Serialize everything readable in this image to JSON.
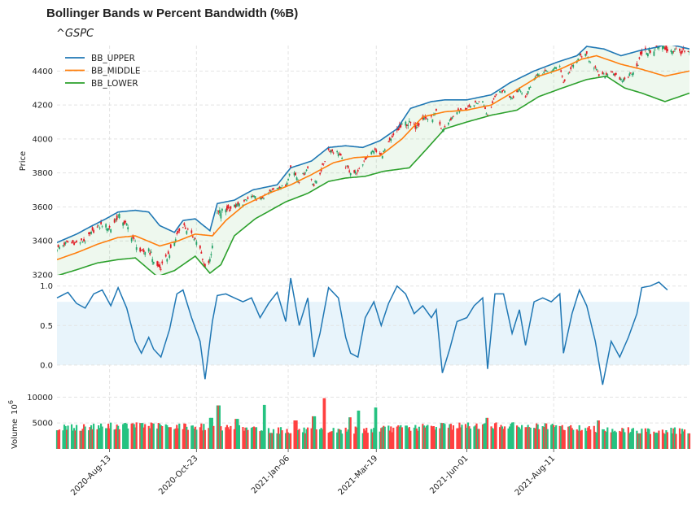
{
  "title": "Bollinger Bands w Percent Bandwidth (%B)",
  "subtitle": "^GSPC",
  "chart_data": [
    {
      "type": "candlestick",
      "panel": "price",
      "ylabel": "Price",
      "ylim": [
        3200,
        4550
      ],
      "yticks": [
        3200,
        3400,
        3600,
        3800,
        4000,
        4200,
        4400
      ],
      "grid": true,
      "legend_position": "top-left",
      "x_start": "2020-07-01",
      "x_end": "2021-11-30",
      "series": [
        {
          "name": "BB_UPPER",
          "color": "#1f77b4",
          "points": [
            [
              "2020-07-01",
              3390
            ],
            [
              "2020-07-17",
              3440
            ],
            [
              "2020-07-30",
              3490
            ],
            [
              "2020-08-10",
              3530
            ],
            [
              "2020-08-20",
              3570
            ],
            [
              "2020-09-03",
              3580
            ],
            [
              "2020-09-14",
              3570
            ],
            [
              "2020-09-23",
              3490
            ],
            [
              "2020-10-05",
              3450
            ],
            [
              "2020-10-12",
              3520
            ],
            [
              "2020-10-22",
              3530
            ],
            [
              "2020-11-03",
              3460
            ],
            [
              "2020-11-09",
              3620
            ],
            [
              "2020-11-23",
              3640
            ],
            [
              "2020-12-08",
              3700
            ],
            [
              "2020-12-28",
              3730
            ],
            [
              "2021-01-08",
              3830
            ],
            [
              "2021-01-25",
              3870
            ],
            [
              "2021-02-08",
              3950
            ],
            [
              "2021-02-22",
              3960
            ],
            [
              "2021-03-08",
              3950
            ],
            [
              "2021-03-22",
              3990
            ],
            [
              "2021-04-05",
              4060
            ],
            [
              "2021-04-16",
              4180
            ],
            [
              "2021-05-03",
              4220
            ],
            [
              "2021-05-14",
              4230
            ],
            [
              "2021-06-01",
              4230
            ],
            [
              "2021-06-21",
              4260
            ],
            [
              "2021-07-06",
              4330
            ],
            [
              "2021-07-26",
              4400
            ],
            [
              "2021-08-13",
              4450
            ],
            [
              "2021-08-30",
              4490
            ],
            [
              "2021-09-07",
              4545
            ],
            [
              "2021-09-21",
              4530
            ],
            [
              "2021-10-05",
              4490
            ],
            [
              "2021-10-20",
              4520
            ],
            [
              "2021-11-03",
              4540
            ],
            [
              "2021-11-12",
              4560
            ],
            [
              "2021-11-30",
              4530
            ]
          ]
        },
        {
          "name": "BB_MIDDLE",
          "color": "#ff7f0e",
          "points": [
            [
              "2020-07-01",
              3290
            ],
            [
              "2020-07-17",
              3330
            ],
            [
              "2020-08-03",
              3380
            ],
            [
              "2020-08-20",
              3420
            ],
            [
              "2020-09-03",
              3430
            ],
            [
              "2020-09-23",
              3370
            ],
            [
              "2020-10-08",
              3400
            ],
            [
              "2020-10-22",
              3440
            ],
            [
              "2020-11-05",
              3430
            ],
            [
              "2020-11-16",
              3520
            ],
            [
              "2020-12-01",
              3610
            ],
            [
              "2020-12-21",
              3680
            ],
            [
              "2021-01-08",
              3730
            ],
            [
              "2021-01-25",
              3790
            ],
            [
              "2021-02-12",
              3860
            ],
            [
              "2021-03-01",
              3890
            ],
            [
              "2021-03-22",
              3900
            ],
            [
              "2021-04-09",
              4000
            ],
            [
              "2021-04-26",
              4130
            ],
            [
              "2021-05-14",
              4160
            ],
            [
              "2021-06-01",
              4170
            ],
            [
              "2021-06-21",
              4200
            ],
            [
              "2021-07-12",
              4290
            ],
            [
              "2021-07-30",
              4370
            ],
            [
              "2021-08-16",
              4410
            ],
            [
              "2021-09-03",
              4470
            ],
            [
              "2021-09-15",
              4490
            ],
            [
              "2021-10-05",
              4440
            ],
            [
              "2021-10-22",
              4410
            ],
            [
              "2021-11-10",
              4370
            ],
            [
              "2021-11-30",
              4400
            ]
          ]
        },
        {
          "name": "BB_LOWER",
          "color": "#2ca02c",
          "points": [
            [
              "2020-07-01",
              3195
            ],
            [
              "2020-07-17",
              3230
            ],
            [
              "2020-08-03",
              3270
            ],
            [
              "2020-08-20",
              3290
            ],
            [
              "2020-09-03",
              3300
            ],
            [
              "2020-09-21",
              3190
            ],
            [
              "2020-10-05",
              3225
            ],
            [
              "2020-10-22",
              3310
            ],
            [
              "2020-11-03",
              3210
            ],
            [
              "2020-11-12",
              3260
            ],
            [
              "2020-11-23",
              3430
            ],
            [
              "2020-12-10",
              3530
            ],
            [
              "2021-01-04",
              3630
            ],
            [
              "2021-01-22",
              3680
            ],
            [
              "2021-02-08",
              3750
            ],
            [
              "2021-02-22",
              3770
            ],
            [
              "2021-03-10",
              3780
            ],
            [
              "2021-03-25",
              3810
            ],
            [
              "2021-04-15",
              3830
            ],
            [
              "2021-04-29",
              3940
            ],
            [
              "2021-05-14",
              4060
            ],
            [
              "2021-06-01",
              4100
            ],
            [
              "2021-06-21",
              4140
            ],
            [
              "2021-07-12",
              4170
            ],
            [
              "2021-07-30",
              4250
            ],
            [
              "2021-08-18",
              4300
            ],
            [
              "2021-09-07",
              4350
            ],
            [
              "2021-09-23",
              4370
            ],
            [
              "2021-10-08",
              4300
            ],
            [
              "2021-10-22",
              4270
            ],
            [
              "2021-11-10",
              4220
            ],
            [
              "2021-11-30",
              4270
            ]
          ]
        }
      ],
      "band_fill_color": "#2ca02c",
      "candle_up_color": "#26a269",
      "candle_down_color": "#e01b24"
    },
    {
      "type": "line",
      "panel": "percent-b",
      "ylim": [
        -0.3,
        1.1
      ],
      "yticks": [
        0.0,
        0.5,
        1.0
      ],
      "ytick_labels": [
        "0.0",
        "0.5",
        "1.0"
      ],
      "band_range": [
        0,
        0.8
      ],
      "band_color": "#e8f4fb",
      "line_color": "#1f77b4",
      "series": [
        {
          "name": "%B",
          "points": [
            [
              "2020-07-01",
              0.85
            ],
            [
              "2020-07-10",
              0.92
            ],
            [
              "2020-07-17",
              0.78
            ],
            [
              "2020-07-24",
              0.72
            ],
            [
              "2020-07-31",
              0.9
            ],
            [
              "2020-08-07",
              0.95
            ],
            [
              "2020-08-14",
              0.75
            ],
            [
              "2020-08-20",
              0.98
            ],
            [
              "2020-08-27",
              0.72
            ],
            [
              "2020-09-03",
              0.3
            ],
            [
              "2020-09-08",
              0.15
            ],
            [
              "2020-09-14",
              0.35
            ],
            [
              "2020-09-18",
              0.2
            ],
            [
              "2020-09-24",
              0.1
            ],
            [
              "2020-10-01",
              0.45
            ],
            [
              "2020-10-07",
              0.9
            ],
            [
              "2020-10-12",
              0.95
            ],
            [
              "2020-10-19",
              0.6
            ],
            [
              "2020-10-26",
              0.3
            ],
            [
              "2020-10-30",
              -0.18
            ],
            [
              "2020-11-05",
              0.55
            ],
            [
              "2020-11-09",
              0.88
            ],
            [
              "2020-11-16",
              0.9
            ],
            [
              "2020-11-23",
              0.85
            ],
            [
              "2020-11-30",
              0.8
            ],
            [
              "2020-12-07",
              0.85
            ],
            [
              "2020-12-14",
              0.6
            ],
            [
              "2020-12-21",
              0.78
            ],
            [
              "2020-12-28",
              0.92
            ],
            [
              "2021-01-04",
              0.55
            ],
            [
              "2021-01-08",
              1.1
            ],
            [
              "2021-01-15",
              0.5
            ],
            [
              "2021-01-22",
              0.85
            ],
            [
              "2021-01-27",
              0.1
            ],
            [
              "2021-02-01",
              0.4
            ],
            [
              "2021-02-08",
              0.98
            ],
            [
              "2021-02-16",
              0.85
            ],
            [
              "2021-02-22",
              0.35
            ],
            [
              "2021-02-26",
              0.15
            ],
            [
              "2021-03-04",
              0.1
            ],
            [
              "2021-03-10",
              0.6
            ],
            [
              "2021-03-17",
              0.8
            ],
            [
              "2021-03-23",
              0.5
            ],
            [
              "2021-03-29",
              0.78
            ],
            [
              "2021-04-05",
              1.0
            ],
            [
              "2021-04-12",
              0.9
            ],
            [
              "2021-04-19",
              0.65
            ],
            [
              "2021-04-26",
              0.75
            ],
            [
              "2021-05-03",
              0.6
            ],
            [
              "2021-05-07",
              0.7
            ],
            [
              "2021-05-12",
              -0.1
            ],
            [
              "2021-05-18",
              0.2
            ],
            [
              "2021-05-24",
              0.55
            ],
            [
              "2021-06-01",
              0.6
            ],
            [
              "2021-06-07",
              0.75
            ],
            [
              "2021-06-14",
              0.85
            ],
            [
              "2021-06-18",
              -0.05
            ],
            [
              "2021-06-24",
              0.9
            ],
            [
              "2021-07-01",
              0.9
            ],
            [
              "2021-07-08",
              0.4
            ],
            [
              "2021-07-14",
              0.7
            ],
            [
              "2021-07-19",
              0.25
            ],
            [
              "2021-07-26",
              0.8
            ],
            [
              "2021-08-02",
              0.85
            ],
            [
              "2021-08-09",
              0.8
            ],
            [
              "2021-08-16",
              0.9
            ],
            [
              "2021-08-19",
              0.15
            ],
            [
              "2021-08-26",
              0.65
            ],
            [
              "2021-09-01",
              0.95
            ],
            [
              "2021-09-07",
              0.75
            ],
            [
              "2021-09-14",
              0.3
            ],
            [
              "2021-09-20",
              -0.25
            ],
            [
              "2021-09-27",
              0.3
            ],
            [
              "2021-10-04",
              0.1
            ],
            [
              "2021-10-11",
              0.35
            ],
            [
              "2021-10-18",
              0.65
            ],
            [
              "2021-10-22",
              0.98
            ],
            [
              "2021-10-29",
              1.0
            ],
            [
              "2021-11-05",
              1.05
            ],
            [
              "2021-11-12",
              0.95
            ]
          ]
        }
      ]
    },
    {
      "type": "bar",
      "panel": "volume",
      "ylabel": "Volume  10^6",
      "ylim": [
        0,
        11000
      ],
      "yticks": [
        5000,
        10000
      ],
      "up_color": "#26c281",
      "down_color": "#ff4040",
      "events": [
        [
          "2020-07-01",
          3600
        ],
        [
          "2020-07-20",
          3500
        ],
        [
          "2020-08-10",
          4000
        ],
        [
          "2020-09-08",
          5000
        ],
        [
          "2020-10-01",
          4200
        ],
        [
          "2020-11-04",
          6000
        ],
        [
          "2020-11-10",
          8400
        ],
        [
          "2020-11-25",
          5800
        ],
        [
          "2020-12-18",
          8500
        ],
        [
          "2021-01-12",
          5500
        ],
        [
          "2021-01-27",
          6300
        ],
        [
          "2021-02-05",
          9800
        ],
        [
          "2021-02-26",
          6100
        ],
        [
          "2021-03-05",
          7400
        ],
        [
          "2021-03-19",
          8000
        ],
        [
          "2021-04-12",
          4500
        ],
        [
          "2021-05-12",
          5000
        ],
        [
          "2021-06-18",
          6000
        ],
        [
          "2021-07-19",
          4200
        ],
        [
          "2021-09-17",
          5500
        ],
        [
          "2021-10-20",
          3000
        ],
        [
          "2021-11-30",
          3000
        ]
      ]
    }
  ],
  "x_axis": {
    "tick_dates": [
      "2020-08-13",
      "2020-10-23",
      "2021-01-06",
      "2021-03-19",
      "2021-06-01",
      "2021-08-11"
    ],
    "tick_labels": [
      "2020-Aug-13",
      "2020-Oct-23",
      "2021-Jan-06",
      "2021-Mar-19",
      "2021-Jun-01",
      "2021-Aug-11"
    ]
  },
  "volume_ylabel": "Volume",
  "volume_unit_base": "10",
  "volume_unit_exp": "6"
}
